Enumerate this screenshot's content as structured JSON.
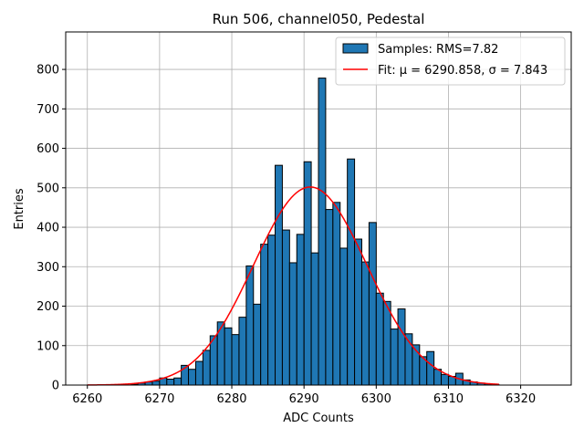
{
  "chart_data": {
    "type": "bar",
    "title": "Run 506, channel050, Pedestal",
    "xlabel": "ADC Counts",
    "ylabel": "Entries",
    "xlim": [
      6257,
      6327
    ],
    "ylim": [
      0,
      895
    ],
    "xticks": [
      "6260",
      "6270",
      "6280",
      "6290",
      "6300",
      "6310",
      "6320"
    ],
    "yticks": [
      "0",
      "100",
      "200",
      "300",
      "400",
      "500",
      "600",
      "700",
      "800"
    ],
    "grid": true,
    "legend_position": "top-right",
    "bar_color": "#1f77b4",
    "fit_color": "#ff0000",
    "series": [
      {
        "name": "Samples: RMS=7.82",
        "type": "histogram",
        "bin_width": 1,
        "bins": [
          6266,
          6267,
          6268,
          6269,
          6270,
          6271,
          6272,
          6273,
          6274,
          6275,
          6276,
          6277,
          6278,
          6279,
          6280,
          6281,
          6282,
          6283,
          6284,
          6285,
          6286,
          6287,
          6288,
          6289,
          6290,
          6291,
          6292,
          6293,
          6294,
          6295,
          6296,
          6297,
          6298,
          6299,
          6300,
          6301,
          6302,
          6303,
          6304,
          6305,
          6306,
          6307,
          6308,
          6309,
          6310,
          6311,
          6312,
          6313,
          6314,
          6315,
          6316
        ],
        "values": [
          2,
          5,
          8,
          10,
          18,
          15,
          18,
          50,
          40,
          60,
          88,
          125,
          160,
          145,
          128,
          172,
          302,
          205,
          357,
          380,
          557,
          393,
          310,
          382,
          566,
          335,
          778,
          445,
          463,
          347,
          573,
          370,
          312,
          412,
          233,
          212,
          142,
          193,
          130,
          102,
          72,
          85,
          40,
          27,
          22,
          30,
          13,
          8,
          5,
          3,
          1
        ]
      },
      {
        "name": "Fit: μ = 6290.858, σ = 7.843",
        "type": "line",
        "mu": 6290.858,
        "sigma": 7.843,
        "amplitude": 502,
        "x_range": [
          6260,
          6317
        ]
      }
    ]
  }
}
